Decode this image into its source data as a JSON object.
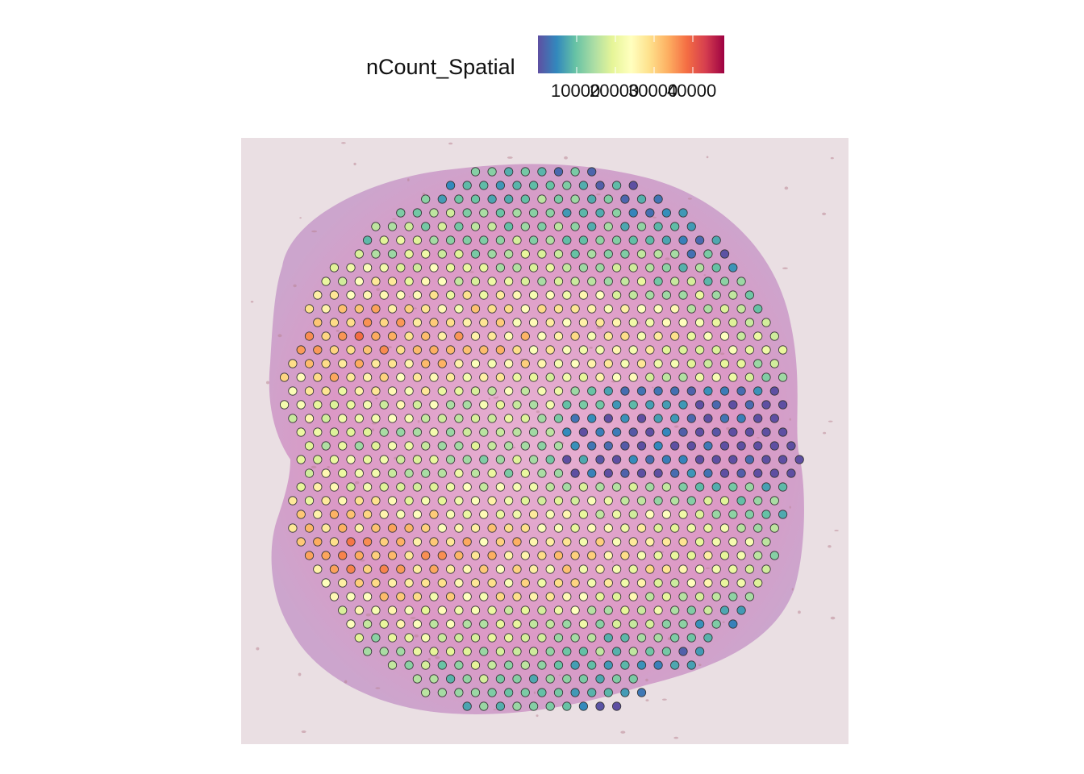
{
  "legend": {
    "title": "nCount_Spatial",
    "tick_labels": [
      "10000",
      "20000",
      "30000",
      "40000"
    ],
    "colors": [
      "#5E4FA2",
      "#3288BD",
      "#66C2A5",
      "#ABDDA4",
      "#E6F598",
      "#FFFFBF",
      "#FEE08B",
      "#FDAE61",
      "#F46D43",
      "#D53E4F",
      "#9E0142"
    ]
  },
  "chart_data": {
    "type": "scatter",
    "title": "",
    "xlabel": "",
    "ylabel": "",
    "color_variable": "nCount_Spatial",
    "color_scale": "Spectral (reversed)",
    "color_range": [
      1000,
      50000
    ],
    "background": "H&E tissue image",
    "grid": false,
    "legend_position": "top",
    "description_of_values": "hexagonal array of Visium spots; low counts (blue) at outer rim and upper-right quadrant, high counts (orange/red) in two oval cortical bands, maximum near lower-left band"
  }
}
